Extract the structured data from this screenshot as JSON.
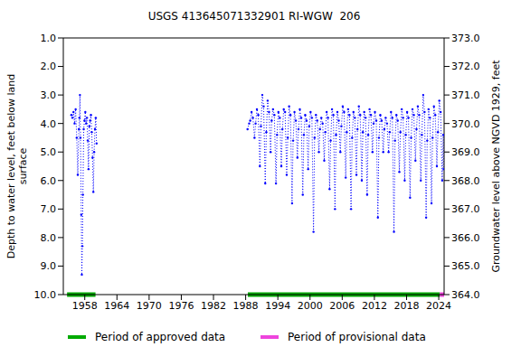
{
  "chart_data": {
    "type": "line",
    "title": "USGS 413645071332901 RI-WGW  206",
    "y_label": [
      "Depth to water level, feet below land",
      "surface"
    ],
    "y2_label": "Groundwater level above NGVD 1929, feet",
    "xlim": [
      1954,
      2025
    ],
    "xticks": [
      1958,
      1964,
      1970,
      1976,
      1982,
      1988,
      1994,
      2000,
      2006,
      2012,
      2018,
      2024
    ],
    "ylim": [
      1,
      10
    ],
    "yticks": [
      {
        "value": 1,
        "label": "1.0"
      },
      {
        "value": 2,
        "label": "2.0"
      },
      {
        "value": 3,
        "label": "3.0"
      },
      {
        "value": 4,
        "label": "4.0"
      },
      {
        "value": 5,
        "label": "5.0"
      },
      {
        "value": 6,
        "label": "6.0"
      },
      {
        "value": 7,
        "label": "7.0"
      },
      {
        "value": 8,
        "label": "8.0"
      },
      {
        "value": 9,
        "label": "9.0"
      },
      {
        "value": 10,
        "label": "10.0"
      }
    ],
    "y2lim": [
      364,
      373
    ],
    "y2ticks": [
      {
        "value": 364,
        "label": "364.0"
      },
      {
        "value": 365,
        "label": "365.0"
      },
      {
        "value": 366,
        "label": "366.0"
      },
      {
        "value": 367,
        "label": "367.0"
      },
      {
        "value": 368,
        "label": "368.0"
      },
      {
        "value": 369,
        "label": "369.0"
      },
      {
        "value": 370,
        "label": "370.0"
      },
      {
        "value": 371,
        "label": "371.0"
      },
      {
        "value": 372,
        "label": "372.0"
      },
      {
        "value": 373,
        "label": "373.0"
      }
    ],
    "grid": false,
    "series": [
      {
        "color": "#0000ff",
        "marker": "dot",
        "line_style": "dotted",
        "x": [
          1955.5,
          1955.7,
          1955.9,
          1956.1,
          1956.3,
          1956.5,
          1956.7,
          1956.9,
          1957.0,
          1957.1,
          1957.2,
          1957.35,
          1957.45,
          1957.55,
          1957.65,
          1957.8,
          1957.95,
          1958.1,
          1958.25,
          1958.4,
          1958.55,
          1958.7,
          1958.85,
          1959.0,
          1959.15,
          1959.3,
          1959.45,
          1959.6,
          1959.75,
          1959.9,
          1960.05,
          1960.2,
          1975,
          1988.35,
          1988.65,
          1988.85,
          1989.1,
          1989.35,
          1989.65,
          1989.85,
          1990.1,
          1990.35,
          1990.65,
          1990.85,
          1991.1,
          1991.35,
          1991.65,
          1991.85,
          1992.1,
          1992.35,
          1992.65,
          1992.85,
          1993.1,
          1993.35,
          1993.65,
          1993.85,
          1994.1,
          1994.35,
          1994.65,
          1994.85,
          1995.1,
          1995.35,
          1995.65,
          1995.85,
          1996.1,
          1996.35,
          1996.65,
          1996.85,
          1997.1,
          1997.35,
          1997.65,
          1997.85,
          1998.1,
          1998.35,
          1998.65,
          1998.85,
          1999.1,
          1999.35,
          1999.65,
          1999.85,
          2000.1,
          2000.35,
          2000.65,
          2000.85,
          2001.1,
          2001.35,
          2001.65,
          2001.85,
          2002.1,
          2002.35,
          2002.65,
          2002.85,
          2003.1,
          2003.35,
          2003.65,
          2003.85,
          2004.1,
          2004.35,
          2004.65,
          2004.85,
          2005.1,
          2005.35,
          2005.65,
          2005.85,
          2006.1,
          2006.35,
          2006.65,
          2006.85,
          2007.1,
          2007.35,
          2007.65,
          2007.85,
          2008.1,
          2008.35,
          2008.65,
          2008.85,
          2009.1,
          2009.35,
          2009.65,
          2009.85,
          2010.1,
          2010.35,
          2010.65,
          2010.85,
          2011.1,
          2011.35,
          2011.65,
          2011.85,
          2012.1,
          2012.35,
          2012.65,
          2012.85,
          2013.1,
          2013.35,
          2013.65,
          2013.85,
          2014.1,
          2014.35,
          2014.65,
          2014.85,
          2015.1,
          2015.35,
          2015.65,
          2015.85,
          2016.1,
          2016.35,
          2016.65,
          2016.85,
          2017.1,
          2017.35,
          2017.65,
          2017.85,
          2018.1,
          2018.35,
          2018.65,
          2018.85,
          2019.1,
          2019.35,
          2019.65,
          2019.85,
          2020.1,
          2020.35,
          2020.65,
          2020.85,
          2021.1,
          2021.35,
          2021.65,
          2021.85,
          2022.1,
          2022.35,
          2022.65,
          2022.85,
          2023.1,
          2023.35,
          2023.65,
          2023.85,
          2024.1,
          2024.35,
          2024.65,
          2024.85,
          2024.95
        ],
        "values": [
          3.7,
          3.8,
          3.6,
          4.0,
          3.5,
          4.5,
          5.8,
          4.2,
          3.8,
          3.0,
          4.5,
          7.2,
          9.3,
          8.3,
          6.5,
          4.2,
          3.9,
          3.6,
          4.0,
          3.8,
          4.6,
          5.6,
          4.1,
          3.9,
          3.7,
          4.3,
          5.2,
          6.4,
          5.0,
          4.2,
          3.8,
          4.7,
          null,
          4.2,
          4.0,
          3.9,
          3.6,
          3.8,
          4.5,
          4.0,
          3.5,
          3.7,
          5.5,
          4.1,
          3.0,
          3.4,
          6.1,
          4.3,
          3.2,
          3.6,
          5.0,
          3.9,
          3.5,
          3.7,
          6.1,
          4.4,
          3.6,
          3.8,
          5.5,
          4.2,
          3.5,
          3.6,
          5.8,
          4.5,
          3.4,
          3.7,
          6.8,
          4.6,
          3.6,
          3.9,
          5.2,
          4.2,
          3.5,
          3.8,
          6.5,
          4.4,
          3.7,
          3.9,
          5.6,
          4.1,
          3.6,
          3.8,
          7.8,
          4.5,
          3.7,
          3.9,
          5.0,
          4.2,
          3.8,
          4.0,
          5.3,
          4.3,
          3.6,
          3.8,
          6.3,
          4.6,
          3.5,
          3.7,
          7.0,
          4.4,
          3.6,
          3.9,
          5.0,
          4.1,
          3.4,
          3.6,
          5.9,
          4.3,
          3.5,
          3.7,
          7.0,
          4.5,
          3.6,
          3.8,
          5.8,
          4.2,
          3.4,
          3.7,
          6.0,
          4.3,
          3.6,
          3.8,
          6.5,
          4.4,
          3.5,
          3.7,
          5.0,
          4.0,
          3.6,
          3.9,
          7.3,
          4.5,
          3.7,
          3.9,
          5.0,
          4.2,
          3.8,
          4.0,
          5.0,
          4.3,
          3.6,
          3.8,
          7.8,
          4.6,
          3.7,
          3.9,
          5.7,
          4.3,
          3.5,
          3.8,
          6.0,
          4.4,
          3.6,
          3.8,
          6.6,
          4.5,
          3.5,
          3.7,
          5.3,
          4.2,
          3.4,
          3.7,
          6.0,
          4.4,
          3.0,
          3.6,
          7.3,
          4.6,
          3.5,
          3.8,
          6.8,
          4.5,
          3.4,
          3.7,
          5.5,
          4.3,
          3.2,
          3.6,
          6.0,
          4.4,
          5.6
        ]
      }
    ],
    "periods": [
      {
        "name": "Period of approved data",
        "color": "#00aa00",
        "ranges": [
          [
            1954.7,
            1960.0
          ],
          [
            1988.4,
            2024.2
          ]
        ]
      },
      {
        "name": "Period of provisional data",
        "color": "#ee44dd",
        "ranges": [
          [
            2024.2,
            2025
          ]
        ]
      }
    ]
  }
}
